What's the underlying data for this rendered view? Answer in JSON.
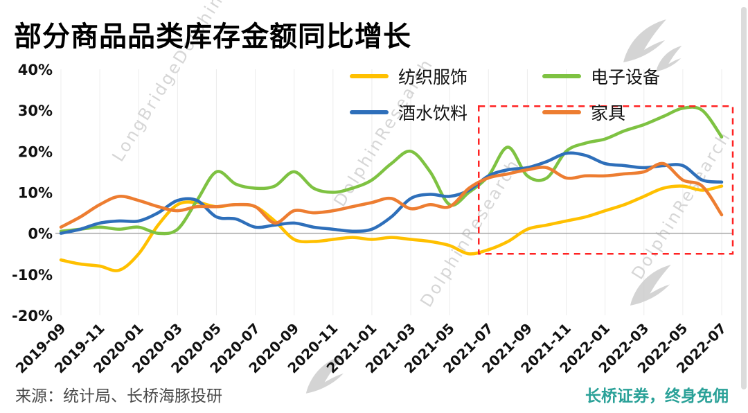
{
  "title": "部分商品品类库存金额同比增长",
  "footer": {
    "source": "来源：统计局、长桥海豚投研",
    "promo": "长桥证券，终身免佣"
  },
  "colors": {
    "promo_text": "#2AA198",
    "highlight_box": "#FF2222",
    "watermark": "#D0D0D0",
    "zero_axis": "#A6A6A6",
    "gridline": "#ECECEC",
    "axis_text": "#111111"
  },
  "watermarks": [
    "LongBridgeDolphinResearch",
    "DolphinResearch",
    "DolphinResearch",
    "DolphinResearch"
  ],
  "chart_data": {
    "type": "line",
    "title": "部分商品品类库存金额同比增长",
    "xlabel": "",
    "ylabel": "",
    "ylim": [
      -20,
      40
    ],
    "yticks": [
      40,
      30,
      20,
      10,
      0,
      -10,
      -20
    ],
    "grid": "vertical-only",
    "legend_position": "top-right",
    "x": [
      "2019-09",
      "2019-10",
      "2019-11",
      "2019-12",
      "2020-01",
      "2020-02",
      "2020-03",
      "2020-04",
      "2020-05",
      "2020-06",
      "2020-07",
      "2020-08",
      "2020-09",
      "2020-10",
      "2020-11",
      "2020-12",
      "2021-01",
      "2021-02",
      "2021-03",
      "2021-04",
      "2021-05",
      "2021-06",
      "2021-07",
      "2021-08",
      "2021-09",
      "2021-10",
      "2021-11",
      "2021-12",
      "2022-01",
      "2022-02",
      "2022-03",
      "2022-04",
      "2022-05",
      "2022-06",
      "2022-07"
    ],
    "x_tick_labels": [
      "2019-09",
      "2019-11",
      "2020-01",
      "2020-03",
      "2020-05",
      "2020-07",
      "2020-09",
      "2020-11",
      "2021-01",
      "2021-03",
      "2021-05",
      "2021-07",
      "2021-09",
      "2021-11",
      "2022-01",
      "2022-03",
      "2022-05",
      "2022-07"
    ],
    "series": [
      {
        "name": "纺织服饰",
        "color": "#FFC000",
        "values": [
          -6.5,
          -7.5,
          -8,
          -9,
          -5,
          2,
          7,
          7.5,
          6.5,
          7,
          6.5,
          3,
          -1.5,
          -2,
          -1.5,
          -1,
          -1.5,
          -1,
          -1.5,
          -2,
          -3,
          -5,
          -4,
          -2,
          1,
          2,
          3,
          4,
          5.5,
          7,
          9,
          11,
          11.5,
          10.5,
          11.5
        ]
      },
      {
        "name": "电子设备",
        "color": "#7EC242",
        "values": [
          0.5,
          1,
          1.5,
          1,
          1.5,
          0,
          1,
          8,
          15,
          12,
          11,
          11.5,
          15,
          11,
          10,
          11,
          13,
          17,
          20,
          15,
          7,
          10,
          14,
          21,
          14,
          13.5,
          20,
          22,
          23,
          25,
          26.5,
          28.5,
          30.5,
          30,
          23.5
        ]
      },
      {
        "name": "酒水饮料",
        "color": "#2E6FBA",
        "values": [
          0,
          1,
          2.5,
          3,
          3,
          5,
          8,
          8,
          4,
          3.5,
          1.5,
          2,
          2.5,
          1.5,
          1,
          0.5,
          1,
          4,
          8.5,
          9.5,
          9,
          10.5,
          14,
          15.5,
          16,
          17.5,
          19.5,
          19,
          17,
          16.5,
          16,
          16.5,
          16.5,
          13,
          12.5
        ]
      },
      {
        "name": "家具",
        "color": "#ED7D31",
        "values": [
          1.5,
          4,
          7,
          9,
          8,
          6.5,
          5.5,
          6.5,
          6.5,
          7,
          6.5,
          2.5,
          5.5,
          5,
          5.5,
          6.5,
          7.5,
          8.5,
          6,
          7,
          6.5,
          11,
          13.5,
          14.5,
          15.5,
          16,
          13.5,
          14,
          14,
          14.5,
          15,
          17,
          13,
          11.5,
          4.5
        ]
      }
    ],
    "highlight_box": {
      "x_from": "2021-06",
      "x_to": "2022-07",
      "y_from": -5,
      "y_to": 31,
      "color": "#FF2222"
    }
  }
}
